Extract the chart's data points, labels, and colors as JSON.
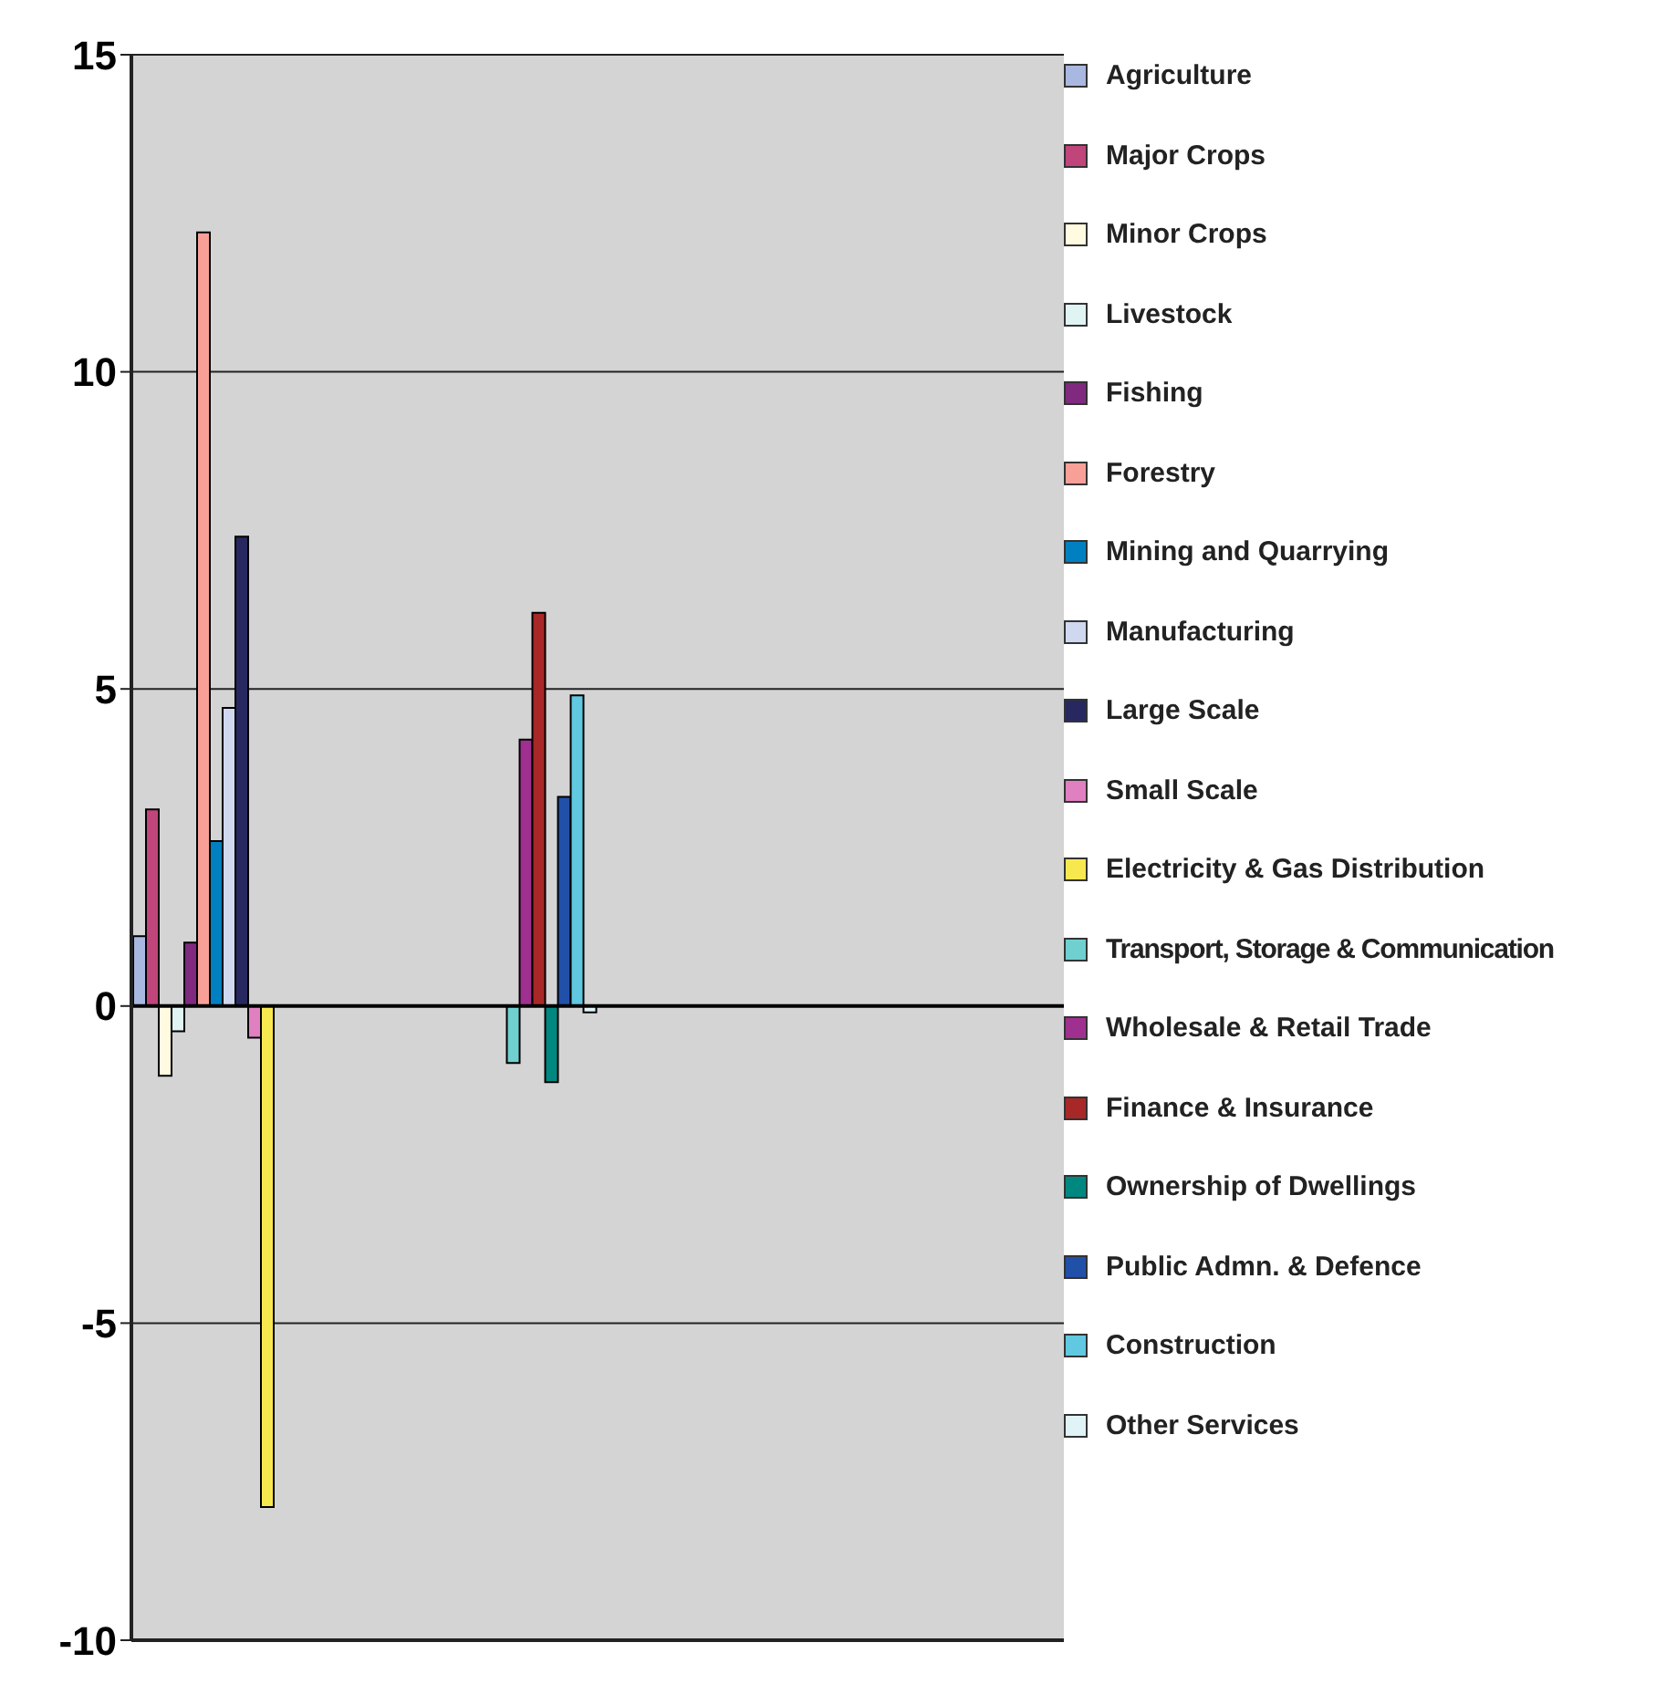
{
  "chart_data": {
    "type": "bar",
    "categories": [
      null,
      null,
      null,
      null
    ],
    "series": [
      {
        "name": "Agriculture",
        "color": "#a8b8e0",
        "values": [
          1.1,
          null,
          null,
          null
        ]
      },
      {
        "name": "Major Crops",
        "color": "#c0457a",
        "values": [
          3.1,
          null,
          null,
          null
        ]
      },
      {
        "name": "Minor Crops",
        "color": "#fffae0",
        "values": [
          -1.1,
          null,
          null,
          null
        ]
      },
      {
        "name": "Livestock",
        "color": "#e0f4f4",
        "values": [
          -0.4,
          null,
          null,
          null
        ]
      },
      {
        "name": "Fishing",
        "color": "#7f2a7f",
        "values": [
          1.0,
          null,
          null,
          null
        ]
      },
      {
        "name": "Forestry",
        "color": "#f8a098",
        "values": [
          12.2,
          null,
          null,
          null
        ]
      },
      {
        "name": "Mining and Quarrying",
        "color": "#0080c0",
        "values": [
          2.6,
          null,
          null,
          null
        ]
      },
      {
        "name": "Manufacturing",
        "color": "#d0d8f0",
        "values": [
          4.7,
          null,
          null,
          null
        ]
      },
      {
        "name": "Large Scale",
        "color": "#282860",
        "values": [
          7.4,
          null,
          null,
          null
        ]
      },
      {
        "name": "Small Scale",
        "color": "#e080c0",
        "values": [
          -0.5,
          null,
          null,
          null
        ]
      },
      {
        "name": "Electricity & Gas Distribution",
        "color": "#f8e850",
        "values": [
          -7.9,
          null,
          null,
          null
        ]
      },
      {
        "name": "Transport, Storage & Communication",
        "color": "#70d0d0",
        "values": [
          null,
          -0.9,
          null,
          null
        ]
      },
      {
        "name": "Wholesale & Retail Trade",
        "color": "#a03090",
        "values": [
          null,
          4.2,
          null,
          null
        ]
      },
      {
        "name": "Finance & Insurance",
        "color": "#a82828",
        "values": [
          null,
          6.2,
          null,
          null
        ]
      },
      {
        "name": "Ownership of Dwellings",
        "color": "#008880",
        "values": [
          null,
          -1.2,
          null,
          null
        ]
      },
      {
        "name": "Public Admn. & Defence",
        "color": "#2050a8",
        "values": [
          null,
          3.3,
          null,
          null
        ]
      },
      {
        "name": "Construction",
        "color": "#60c8e0",
        "values": [
          null,
          4.9,
          null,
          null
        ]
      },
      {
        "name": "Other Services",
        "color": "#e0f4f8",
        "values": [
          null,
          -0.1,
          null,
          null
        ]
      }
    ],
    "ylim": [
      -10,
      15
    ],
    "yticks": [
      -10,
      -5,
      0,
      5,
      10,
      15
    ],
    "grid": "y",
    "legend": "right",
    "tick_labels": "y"
  }
}
